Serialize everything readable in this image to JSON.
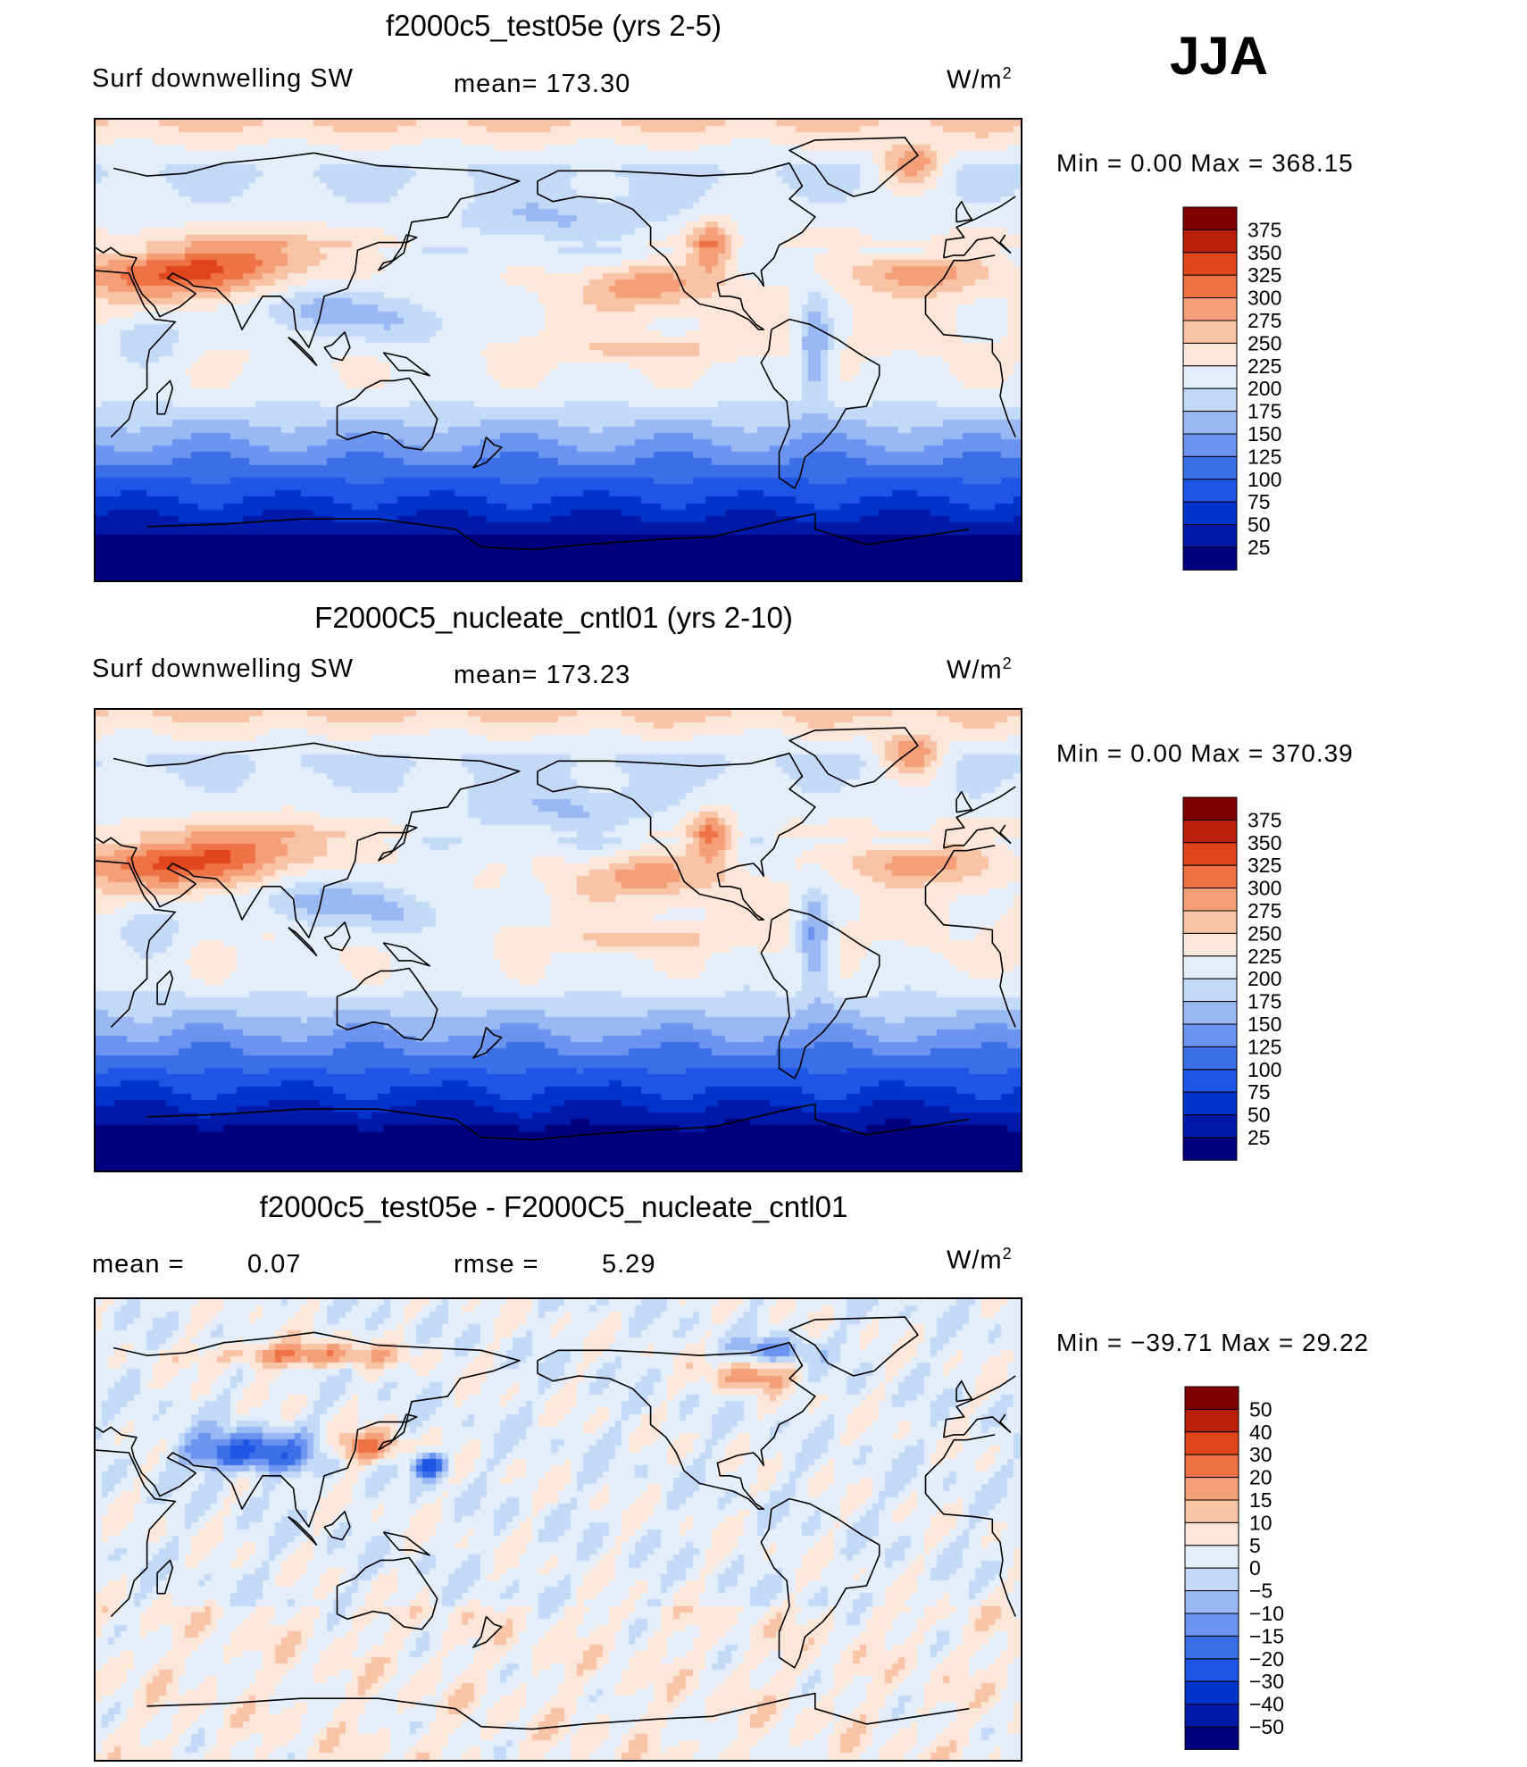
{
  "season": "JJA",
  "panels": [
    {
      "title": "f2000c5_test05e (yrs 2-5)",
      "variable": "Surf downwelling SW",
      "stat": "mean= 173.30",
      "units_base": "W/m",
      "units_exp": "2",
      "minmax": "Min =    0.00  Max  =  368.15",
      "colorbar": [
        "375",
        "350",
        "325",
        "300",
        "275",
        "250",
        "225",
        "200",
        "175",
        "150",
        "125",
        "100",
        "75",
        "50",
        "25"
      ]
    },
    {
      "title": "F2000C5_nucleate_cntl01 (yrs 2-10)",
      "variable": "Surf downwelling SW",
      "stat": "mean= 173.23",
      "units_base": "W/m",
      "units_exp": "2",
      "minmax": "Min =    0.00  Max  =  370.39",
      "colorbar": [
        "375",
        "350",
        "325",
        "300",
        "275",
        "250",
        "225",
        "200",
        "175",
        "150",
        "125",
        "100",
        "75",
        "50",
        "25"
      ]
    },
    {
      "title": "f2000c5_test05e - F2000C5_nucleate_cntl01",
      "mean_label": "mean =",
      "mean_value": "0.07",
      "rmse_label": "rmse =",
      "rmse_value": "5.29",
      "units_base": "W/m",
      "units_exp": "2",
      "minmax": "Min = −39.71  Max  =   29.22",
      "colorbar": [
        "50",
        "40",
        "30",
        "20",
        "15",
        "10",
        "5",
        "0",
        "−5",
        "−10",
        "−15",
        "−20",
        "−30",
        "−40",
        "−50"
      ]
    }
  ],
  "chart_data": [
    {
      "type": "heatmap",
      "title": "f2000c5_test05e (yrs 2-5)",
      "variable": "Surf downwelling SW",
      "units": "W/m2",
      "mean": 173.3,
      "min": 0.0,
      "max": 368.15,
      "levels": [
        25,
        50,
        75,
        100,
        125,
        150,
        175,
        200,
        225,
        250,
        275,
        300,
        325,
        350,
        375
      ],
      "colors": [
        "#00007f",
        "#0019a8",
        "#0033cc",
        "#1f55e6",
        "#3a6fe8",
        "#6a94ef",
        "#99b8f4",
        "#c3d9f8",
        "#e4eefb",
        "#fbe6d8",
        "#f9c3a5",
        "#f59f79",
        "#ef7245",
        "#e0451c",
        "#b8200c",
        "#800000"
      ]
    },
    {
      "type": "heatmap",
      "title": "F2000C5_nucleate_cntl01 (yrs 2-10)",
      "variable": "Surf downwelling SW",
      "units": "W/m2",
      "mean": 173.23,
      "min": 0.0,
      "max": 370.39,
      "levels": [
        25,
        50,
        75,
        100,
        125,
        150,
        175,
        200,
        225,
        250,
        275,
        300,
        325,
        350,
        375
      ],
      "colors": [
        "#00007f",
        "#0019a8",
        "#0033cc",
        "#1f55e6",
        "#3a6fe8",
        "#6a94ef",
        "#99b8f4",
        "#c3d9f8",
        "#e4eefb",
        "#fbe6d8",
        "#f9c3a5",
        "#f59f79",
        "#ef7245",
        "#e0451c",
        "#b8200c",
        "#800000"
      ]
    },
    {
      "type": "heatmap",
      "title": "f2000c5_test05e - F2000C5_nucleate_cntl01",
      "units": "W/m2",
      "mean": 0.07,
      "rmse": 5.29,
      "min": -39.71,
      "max": 29.22,
      "levels": [
        -50,
        -40,
        -30,
        -20,
        -15,
        -10,
        -5,
        0,
        5,
        10,
        15,
        20,
        30,
        40,
        50
      ],
      "colors": [
        "#00007f",
        "#0019a8",
        "#0033cc",
        "#1f55e6",
        "#3a6fe8",
        "#6a94ef",
        "#99b8f4",
        "#c3d9f8",
        "#e4eefb",
        "#fbe6d8",
        "#f9c3a5",
        "#f59f79",
        "#ef7245",
        "#e0451c",
        "#b8200c",
        "#800000"
      ]
    }
  ]
}
